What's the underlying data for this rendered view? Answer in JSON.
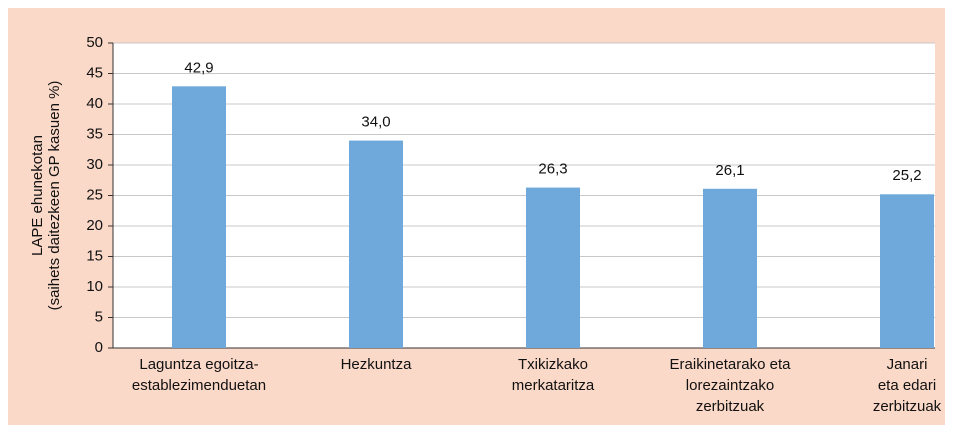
{
  "chart_data": {
    "type": "bar",
    "y_label": [
      "LAPE ehunekotan",
      "(saihets daitezkeen GP kasuen %)"
    ],
    "categories": [
      [
        "Laguntza egoitza-",
        "establezimenduetan"
      ],
      [
        "Hezkuntza"
      ],
      [
        "Txikizkako",
        "merkataritza"
      ],
      [
        "Eraikinetarako eta",
        "lorezaintzako",
        "zerbitzuak"
      ],
      [
        "Janari",
        "eta edari",
        "zerbitzuak"
      ]
    ],
    "values": [
      42.9,
      34.0,
      26.3,
      26.1,
      25.2
    ],
    "value_labels": [
      "42,9",
      "34,0",
      "26,3",
      "26,1",
      "25,2"
    ],
    "color": "#6fa9db",
    "ylim": [
      0,
      50
    ],
    "yticks": [
      0,
      5,
      10,
      15,
      20,
      25,
      30,
      35,
      40,
      45,
      50
    ],
    "grid": true
  }
}
